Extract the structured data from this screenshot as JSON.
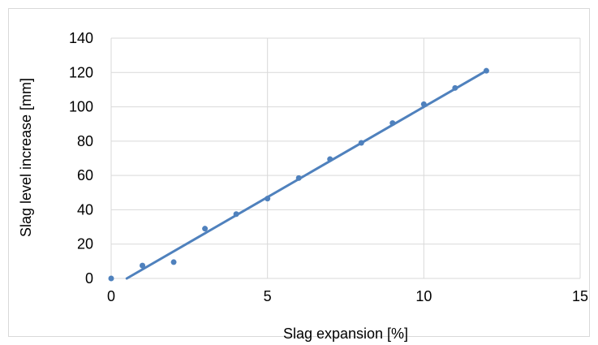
{
  "chart_data": {
    "type": "scatter",
    "title": "",
    "xlabel": "Slag expansion [%]",
    "ylabel": "Slag level increase [mm]",
    "xlim": [
      0,
      15
    ],
    "ylim": [
      0,
      140
    ],
    "xticks": [
      0,
      5,
      10,
      15
    ],
    "yticks": [
      0,
      20,
      40,
      60,
      80,
      100,
      120,
      140
    ],
    "grid": true,
    "legend": "none",
    "colors": {
      "points": "#4f81bd",
      "trendline": "#4f81bd",
      "grid": "#d9d9d9",
      "border": "#d9d9d9"
    },
    "series": [
      {
        "x": [
          0,
          1,
          2,
          3,
          4,
          5,
          6,
          7,
          8,
          9,
          10,
          11,
          12
        ],
        "y": [
          0,
          7.5,
          9.5,
          29,
          37.5,
          46.5,
          58.5,
          69.5,
          79,
          90.5,
          101.5,
          111,
          121
        ]
      }
    ],
    "trendline": {
      "type": "linear",
      "x": [
        0.5,
        12
      ],
      "y": [
        0,
        121
      ]
    }
  }
}
